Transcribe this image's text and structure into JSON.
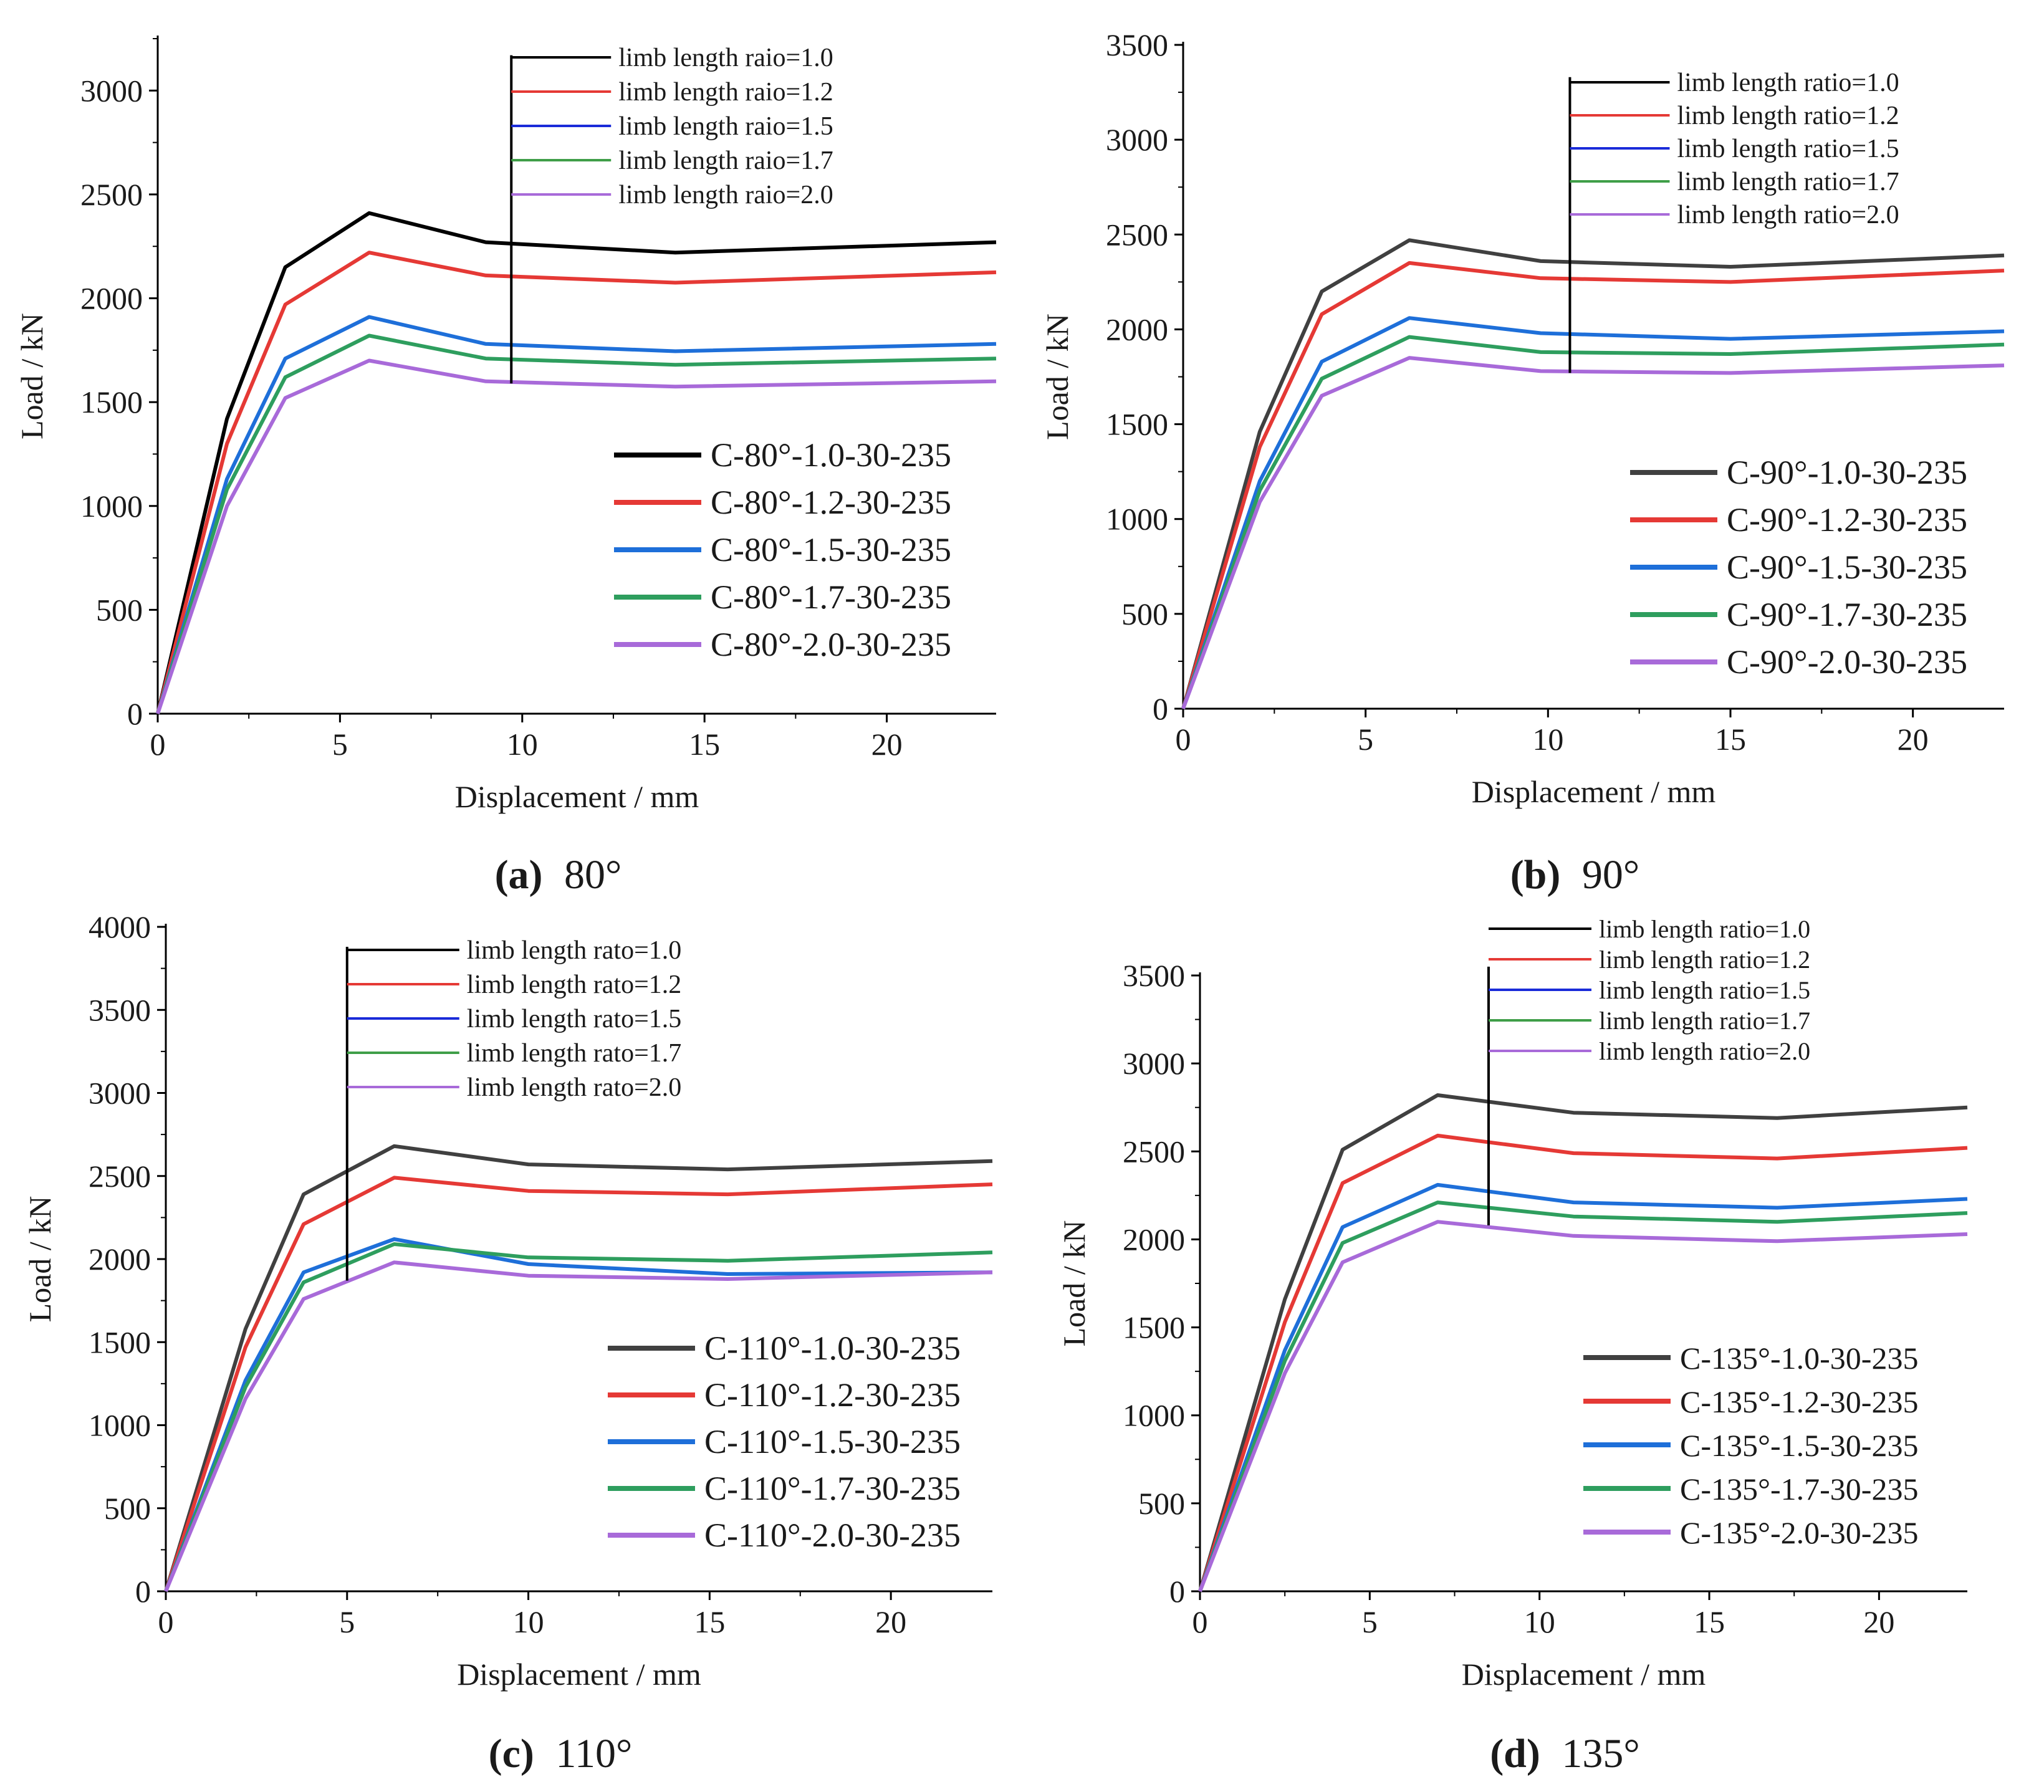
{
  "chart_data": [
    {
      "type": "line",
      "panel_label": "(a)",
      "caption": "80°",
      "xlabel": "Displacement / mm",
      "ylabel": "Load / kN",
      "xlim": [
        0,
        23
      ],
      "ylim": [
        0,
        3250
      ],
      "xticks": [
        0,
        5,
        10,
        15,
        20
      ],
      "yticks": [
        0,
        500,
        1000,
        1500,
        2000,
        2500,
        3000
      ],
      "series": [
        {
          "name": "C-80°-1.0-30-235",
          "color": "#000000",
          "x": [
            0,
            1.9,
            3.5,
            5.8,
            9.0,
            14.2,
            23
          ],
          "y": [
            0,
            1420,
            2150,
            2410,
            2270,
            2220,
            2270
          ]
        },
        {
          "name": "C-80°-1.2-30-235",
          "color": "#e53935",
          "x": [
            0,
            1.9,
            3.5,
            5.8,
            9.0,
            14.2,
            23
          ],
          "y": [
            0,
            1300,
            1970,
            2220,
            2110,
            2075,
            2125
          ]
        },
        {
          "name": "C-80°-1.5-30-235",
          "color": "#1e6fd9",
          "x": [
            0,
            1.9,
            3.5,
            5.8,
            9.0,
            14.2,
            23
          ],
          "y": [
            0,
            1130,
            1710,
            1910,
            1780,
            1745,
            1780
          ]
        },
        {
          "name": "C-80°-1.7-30-235",
          "color": "#2e9e5e",
          "x": [
            0,
            1.9,
            3.5,
            5.8,
            9.0,
            14.2,
            23
          ],
          "y": [
            0,
            1080,
            1620,
            1820,
            1710,
            1680,
            1710
          ]
        },
        {
          "name": "C-80°-2.0-30-235",
          "color": "#a86ad9",
          "x": [
            0,
            1.9,
            3.5,
            5.8,
            9.0,
            14.2,
            23
          ],
          "y": [
            0,
            1000,
            1520,
            1700,
            1600,
            1575,
            1600
          ]
        }
      ],
      "upper_legend": {
        "entries": [
          "limb length raio=1.0",
          "limb length raio=1.2",
          "limb length raio=1.5",
          "limb length raio=1.7",
          "limb length raio=2.0"
        ],
        "colors": [
          "#000000",
          "#e53935",
          "#1a2bd9",
          "#3f9e48",
          "#a86ad9"
        ],
        "bar_x": 9.7,
        "bar_y": [
          1590,
          3170
        ]
      }
    },
    {
      "type": "line",
      "panel_label": "(b)",
      "caption": "90°",
      "xlabel": "Displacement / mm",
      "ylabel": "Load / kN",
      "xlim": [
        0,
        22.5
      ],
      "ylim": [
        0,
        3500
      ],
      "xticks": [
        0,
        5,
        10,
        15,
        20
      ],
      "yticks": [
        0,
        500,
        1000,
        1500,
        2000,
        2500,
        3000,
        3500
      ],
      "series": [
        {
          "name": "C-90°-1.0-30-235",
          "color": "#404040",
          "x": [
            0,
            2.1,
            3.8,
            6.2,
            9.8,
            15.0,
            22.5
          ],
          "y": [
            0,
            1460,
            2200,
            2470,
            2360,
            2330,
            2390
          ]
        },
        {
          "name": "C-90°-1.2-30-235",
          "color": "#e53935",
          "x": [
            0,
            2.1,
            3.8,
            6.2,
            9.8,
            15.0,
            22.5
          ],
          "y": [
            0,
            1380,
            2080,
            2350,
            2270,
            2250,
            2310
          ]
        },
        {
          "name": "C-90°-1.5-30-235",
          "color": "#1e6fd9",
          "x": [
            0,
            2.1,
            3.8,
            6.2,
            9.8,
            15.0,
            22.5
          ],
          "y": [
            0,
            1200,
            1830,
            2060,
            1980,
            1950,
            1990
          ]
        },
        {
          "name": "C-90°-1.7-30-235",
          "color": "#2e9e5e",
          "x": [
            0,
            2.1,
            3.8,
            6.2,
            9.8,
            15.0,
            22.5
          ],
          "y": [
            0,
            1150,
            1740,
            1960,
            1880,
            1870,
            1920
          ]
        },
        {
          "name": "C-90°-2.0-30-235",
          "color": "#a86ad9",
          "x": [
            0,
            2.1,
            3.8,
            6.2,
            9.8,
            15.0,
            22.5
          ],
          "y": [
            0,
            1090,
            1650,
            1850,
            1780,
            1770,
            1810
          ]
        }
      ],
      "upper_legend": {
        "entries": [
          "limb length ratio=1.0",
          "limb length ratio=1.2",
          "limb length ratio=1.5",
          "limb length ratio=1.7",
          "limb length ratio=2.0"
        ],
        "colors": [
          "#000000",
          "#e53935",
          "#1a2bd9",
          "#3f9e48",
          "#a86ad9"
        ],
        "bar_x": 10.6,
        "bar_y": [
          1770,
          3330
        ]
      }
    },
    {
      "type": "line",
      "panel_label": "(c)",
      "caption": "110°",
      "xlabel": "Displacement / mm",
      "ylabel": "Load / kN",
      "xlim": [
        0,
        22.8
      ],
      "ylim": [
        0,
        4000
      ],
      "xticks": [
        0,
        5,
        10,
        15,
        20
      ],
      "yticks": [
        0,
        500,
        1000,
        1500,
        2000,
        2500,
        3000,
        3500,
        4000
      ],
      "series": [
        {
          "name": "C-110°-1.0-30-235",
          "color": "#404040",
          "x": [
            0,
            2.2,
            3.8,
            6.3,
            10.0,
            15.5,
            22.8
          ],
          "y": [
            0,
            1580,
            2390,
            2680,
            2570,
            2540,
            2590
          ]
        },
        {
          "name": "C-110°-1.2-30-235",
          "color": "#e53935",
          "x": [
            0,
            2.2,
            3.8,
            6.3,
            10.0,
            15.5,
            22.8
          ],
          "y": [
            0,
            1470,
            2210,
            2490,
            2410,
            2390,
            2450
          ]
        },
        {
          "name": "C-110°-1.5-30-235",
          "color": "#1e6fd9",
          "x": [
            0,
            2.2,
            3.8,
            6.3,
            10.0,
            15.5,
            22.8
          ],
          "y": [
            0,
            1270,
            1920,
            2120,
            1970,
            1910,
            1920
          ]
        },
        {
          "name": "C-110°-1.7-30-235",
          "color": "#2e9e5e",
          "x": [
            0,
            2.2,
            3.8,
            6.3,
            10.0,
            15.5,
            22.8
          ],
          "y": [
            0,
            1230,
            1860,
            2090,
            2010,
            1990,
            2040
          ]
        },
        {
          "name": "C-110°-2.0-30-235",
          "color": "#a86ad9",
          "x": [
            0,
            2.2,
            3.8,
            6.3,
            10.0,
            15.5,
            22.8
          ],
          "y": [
            0,
            1160,
            1760,
            1980,
            1900,
            1880,
            1920
          ]
        }
      ],
      "upper_legend": {
        "entries": [
          "limb length rato=1.0",
          "limb length rato=1.2",
          "limb length rato=1.5",
          "limb length rato=1.7",
          "limb length rato=2.0"
        ],
        "colors": [
          "#000000",
          "#e53935",
          "#1a2bd9",
          "#3f9e48",
          "#a86ad9"
        ],
        "bar_x": 5.0,
        "bar_y": [
          1870,
          3880
        ]
      }
    },
    {
      "type": "line",
      "panel_label": "(d)",
      "caption": "135°",
      "xlabel": "Displacement / mm",
      "ylabel": "Load / kN",
      "xlim": [
        0,
        22.6
      ],
      "ylim": [
        0,
        3500
      ],
      "xticks": [
        0,
        5,
        10,
        15,
        20
      ],
      "yticks": [
        0,
        500,
        1000,
        1500,
        2000,
        2500,
        3000,
        3500
      ],
      "series": [
        {
          "name": "C-135°-1.0-30-235",
          "color": "#404040",
          "x": [
            0,
            2.5,
            4.2,
            7.0,
            11.0,
            17.0,
            22.6
          ],
          "y": [
            0,
            1660,
            2510,
            2820,
            2720,
            2690,
            2750
          ]
        },
        {
          "name": "C-135°-1.2-30-235",
          "color": "#e53935",
          "x": [
            0,
            2.5,
            4.2,
            7.0,
            11.0,
            17.0,
            22.6
          ],
          "y": [
            0,
            1530,
            2320,
            2590,
            2490,
            2460,
            2520
          ]
        },
        {
          "name": "C-135°-1.5-30-235",
          "color": "#1e6fd9",
          "x": [
            0,
            2.5,
            4.2,
            7.0,
            11.0,
            17.0,
            22.6
          ],
          "y": [
            0,
            1370,
            2070,
            2310,
            2210,
            2180,
            2230
          ]
        },
        {
          "name": "C-135°-1.7-30-235",
          "color": "#2e9e5e",
          "x": [
            0,
            2.5,
            4.2,
            7.0,
            11.0,
            17.0,
            22.6
          ],
          "y": [
            0,
            1310,
            1980,
            2210,
            2130,
            2100,
            2150
          ]
        },
        {
          "name": "C-135°-2.0-30-235",
          "color": "#a86ad9",
          "x": [
            0,
            2.5,
            4.2,
            7.0,
            11.0,
            17.0,
            22.6
          ],
          "y": [
            0,
            1240,
            1870,
            2100,
            2020,
            1990,
            2030
          ]
        }
      ],
      "upper_legend": {
        "entries": [
          "limb length ratio=1.0",
          "limb length ratio=1.2",
          "limb length ratio=1.5",
          "limb length ratio=1.7",
          "limb length ratio=2.0"
        ],
        "colors": [
          "#000000",
          "#e53935",
          "#1a2bd9",
          "#3f9e48",
          "#a86ad9"
        ],
        "bar_x": 8.5,
        "bar_y": [
          2080,
          3550
        ]
      }
    }
  ]
}
